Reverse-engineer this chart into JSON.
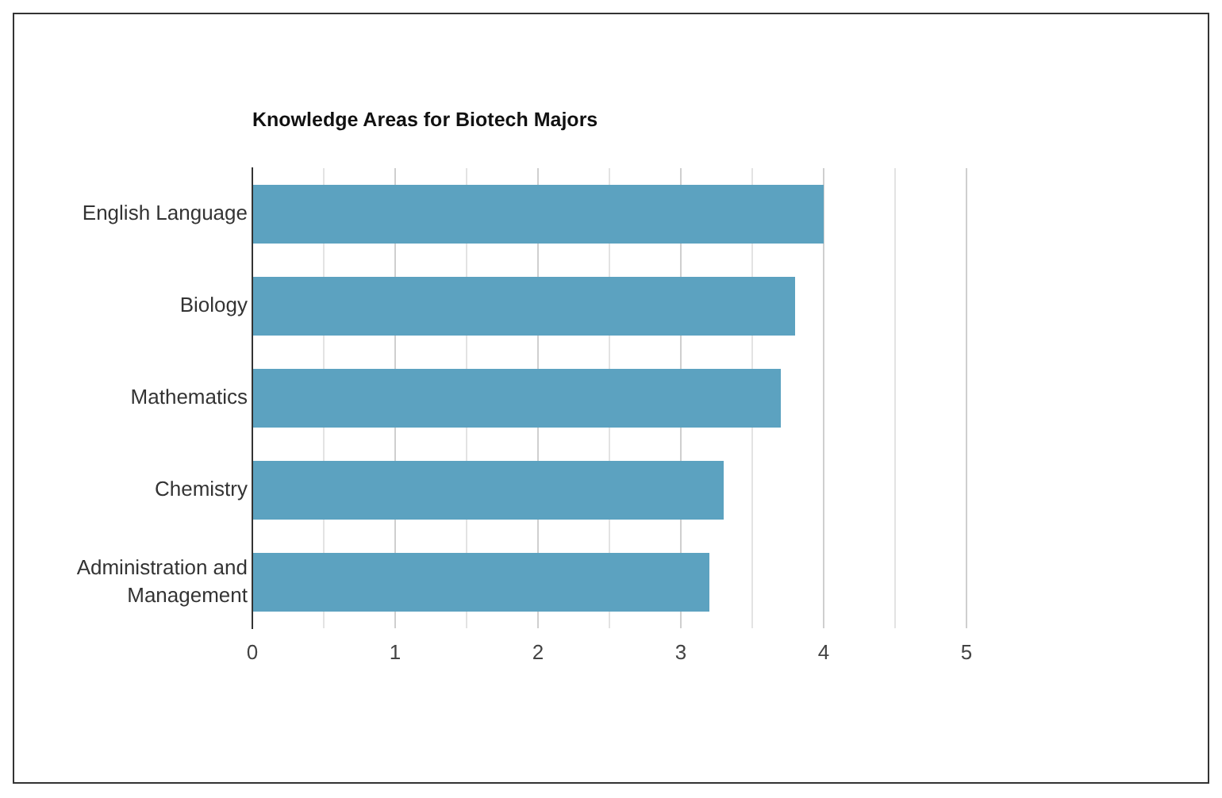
{
  "chart_data": {
    "type": "bar",
    "orientation": "horizontal",
    "title": "Knowledge Areas for Biotech Majors",
    "categories": [
      "English Language",
      "Biology",
      "Mathematics",
      "Chemistry",
      "Administration and Management"
    ],
    "values": [
      4,
      3.8,
      3.7,
      3.3,
      3.2
    ],
    "color": "#5ca2c0",
    "xlim": [
      0,
      5
    ],
    "xticks": [
      0,
      {
        "value": 0.5,
        "label": null
      },
      1,
      {
        "value": 1.5,
        "label": null
      },
      2,
      {
        "value": 2.5,
        "label": null
      },
      3,
      {
        "value": 3.5,
        "label": null
      },
      4,
      {
        "value": 4.5,
        "label": null
      },
      5
    ],
    "grid": "x"
  }
}
